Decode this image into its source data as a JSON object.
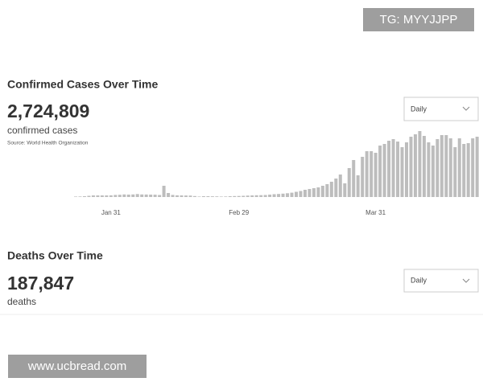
{
  "watermarks": [
    "TG: MYYJJPP",
    "www.ucbread.com"
  ],
  "chart_data": [
    {
      "type": "bar",
      "title": "Confirmed Cases Over Time",
      "total": "2,724,809",
      "subtitle": "confirmed cases",
      "source": "Source: World Health Organization",
      "dropdown": "Daily",
      "categories": [
        null,
        null,
        null,
        null,
        null,
        null,
        null,
        null,
        "Jan 31",
        null,
        null,
        null,
        null,
        null,
        null,
        null,
        null,
        null,
        null,
        null,
        null,
        null,
        null,
        null,
        null,
        null,
        null,
        null,
        null,
        null,
        null,
        null,
        null,
        null,
        null,
        null,
        null,
        "Feb 29",
        null,
        null,
        null,
        null,
        null,
        null,
        null,
        null,
        null,
        null,
        null,
        null,
        null,
        null,
        null,
        null,
        null,
        null,
        null,
        null,
        null,
        null,
        null,
        null,
        null,
        null,
        null,
        null,
        null,
        null,
        "Mar 31",
        null,
        null,
        null,
        null,
        null,
        null,
        null,
        null,
        null,
        null,
        null,
        null,
        null,
        null,
        null,
        null,
        null,
        null,
        null,
        null,
        null,
        null,
        null
      ],
      "values": [
        600,
        700,
        1000,
        1500,
        2000,
        2000,
        2000,
        2000,
        2100,
        2600,
        2800,
        3200,
        3000,
        3200,
        3700,
        3200,
        3100,
        3000,
        2900,
        2500,
        14000,
        5000,
        2600,
        2100,
        2000,
        1900,
        1800,
        1200,
        600,
        1000,
        1000,
        900,
        800,
        600,
        700,
        1000,
        1200,
        1300,
        1500,
        1800,
        2000,
        2200,
        2300,
        2500,
        3000,
        3500,
        3800,
        4200,
        4700,
        5400,
        6500,
        7500,
        9000,
        10000,
        11000,
        12000,
        14000,
        16000,
        19000,
        23000,
        28000,
        17000,
        36000,
        46000,
        27000,
        50000,
        57000,
        57000,
        55000,
        64000,
        66000,
        70000,
        72000,
        69000,
        62000,
        68000,
        75000,
        78000,
        82000,
        76000,
        68000,
        64000,
        72000,
        77000,
        77000,
        73000,
        62000,
        73000,
        66000,
        67000,
        73000,
        75000
      ],
      "color": "#bdbdbd",
      "ylim": [
        0,
        100000
      ]
    },
    {
      "type": "bar",
      "title": "Deaths Over Time",
      "total": "187,847",
      "subtitle": "deaths",
      "dropdown": "Daily"
    }
  ]
}
